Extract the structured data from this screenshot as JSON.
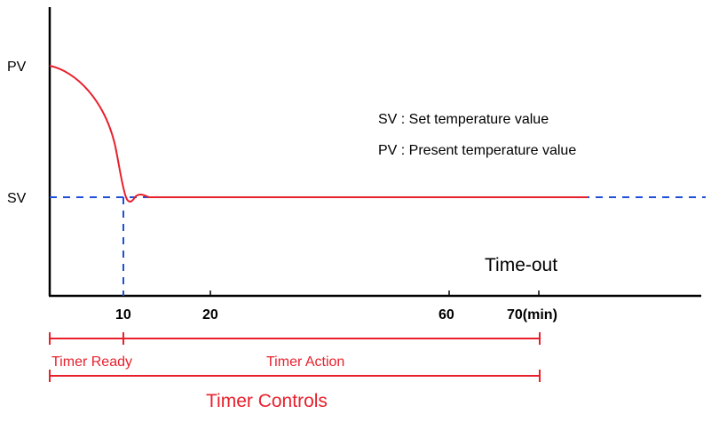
{
  "chart_data": {
    "type": "line",
    "y_labels": {
      "pv": "PV",
      "sv": "SV"
    },
    "x_ticks": [
      "10",
      "20",
      "60",
      "70(min)"
    ],
    "legend": [
      "SV : Set temperature value",
      "PV : Present temperature value"
    ],
    "annotation": "Time-out",
    "timer": {
      "ready": "Timer Ready",
      "action": "Timer Action",
      "controls": "Timer Controls"
    },
    "series": [
      {
        "color": "#e8202c",
        "values": "temperature curve from PV settling at SV"
      }
    ],
    "reference_lines": [
      {
        "color": "#1f4fd8",
        "style": "dashed",
        "at": "SV"
      },
      {
        "color": "#1f4fd8",
        "style": "dashed",
        "at": "10"
      }
    ]
  }
}
